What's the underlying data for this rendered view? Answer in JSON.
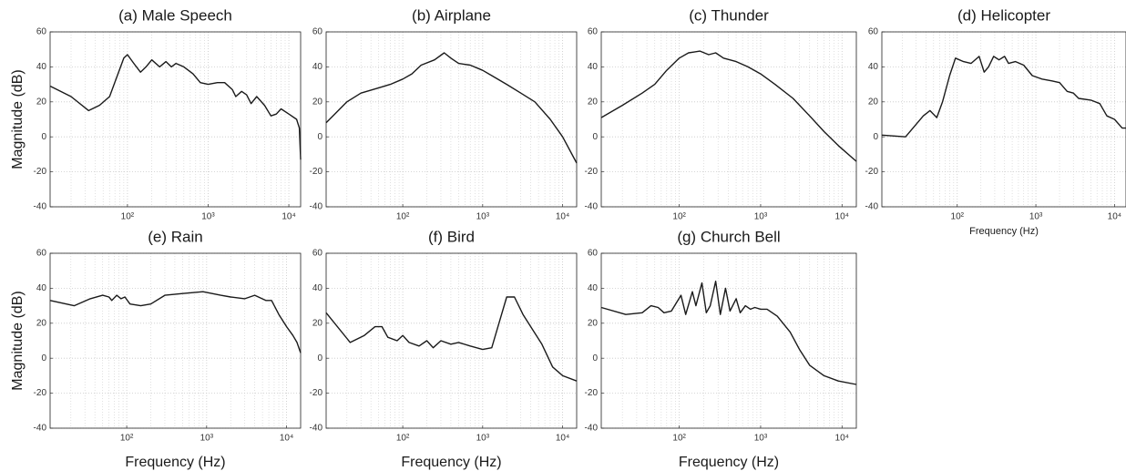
{
  "chart_data": [
    {
      "type": "line",
      "title": "(a) Male Speech",
      "ylabel": "Magnitude (dB)",
      "color": "#1a1a1a",
      "log_x": true,
      "grid": true,
      "xlim": [
        11,
        14000
      ],
      "ylim": [
        -40,
        60
      ],
      "xticks": [
        {
          "value": 100,
          "label": "10²"
        },
        {
          "value": 1000,
          "label": "10³"
        },
        {
          "value": 10000,
          "label": "10⁴"
        }
      ],
      "yticks": [
        -40,
        -20,
        0,
        20,
        40,
        60
      ],
      "x": [
        11,
        20,
        33,
        45,
        60,
        75,
        90,
        100,
        120,
        145,
        170,
        200,
        250,
        300,
        350,
        400,
        500,
        650,
        800,
        1000,
        1300,
        1600,
        2000,
        2200,
        2600,
        3000,
        3400,
        4000,
        5000,
        6000,
        7000,
        8000,
        10000,
        12500,
        13500,
        14000
      ],
      "values": [
        29,
        23,
        15,
        18,
        23,
        35,
        45,
        47,
        42,
        37,
        40,
        44,
        40,
        43,
        40,
        42,
        40,
        36,
        31,
        30,
        31,
        31,
        27,
        23,
        26,
        24,
        19,
        23,
        18,
        12,
        13,
        16,
        13,
        10,
        5,
        -13
      ]
    },
    {
      "type": "line",
      "title": "(b) Airplane",
      "color": "#1a1a1a",
      "log_x": true,
      "grid": true,
      "xlim": [
        11,
        15000
      ],
      "ylim": [
        -40,
        60
      ],
      "xticks": [
        {
          "value": 100,
          "label": "10²"
        },
        {
          "value": 1000,
          "label": "10³"
        },
        {
          "value": 10000,
          "label": "10⁴"
        }
      ],
      "yticks": [
        -40,
        -20,
        0,
        20,
        40,
        60
      ],
      "x": [
        11,
        20,
        30,
        50,
        70,
        100,
        130,
        170,
        250,
        330,
        400,
        500,
        700,
        1000,
        1300,
        2000,
        3000,
        4500,
        7000,
        10000,
        15000
      ],
      "values": [
        8,
        20,
        25,
        28,
        30,
        33,
        36,
        41,
        44,
        48,
        45,
        42,
        41,
        38,
        35,
        30,
        25,
        20,
        10,
        0,
        -15
      ]
    },
    {
      "type": "line",
      "title": "(c) Thunder",
      "color": "#1a1a1a",
      "log_x": true,
      "grid": true,
      "xlim": [
        11,
        15000
      ],
      "ylim": [
        -40,
        60
      ],
      "xticks": [
        {
          "value": 100,
          "label": "10²"
        },
        {
          "value": 1000,
          "label": "10³"
        },
        {
          "value": 10000,
          "label": "10⁴"
        }
      ],
      "yticks": [
        -40,
        -20,
        0,
        20,
        40,
        60
      ],
      "x": [
        11,
        20,
        35,
        50,
        70,
        100,
        130,
        180,
        230,
        280,
        350,
        500,
        700,
        1000,
        1500,
        2500,
        4000,
        6000,
        9000,
        15000
      ],
      "values": [
        11,
        18,
        25,
        30,
        38,
        45,
        48,
        49,
        47,
        48,
        45,
        43,
        40,
        36,
        30,
        22,
        12,
        3,
        -5,
        -14
      ]
    },
    {
      "type": "line",
      "title": "(d) Helicopter",
      "xlabel": "Frequency (Hz)",
      "color": "#1a1a1a",
      "log_x": true,
      "grid": true,
      "xlim": [
        11,
        14000
      ],
      "ylim": [
        -40,
        60
      ],
      "xticks": [
        {
          "value": 100,
          "label": "10²"
        },
        {
          "value": 1000,
          "label": "10³"
        },
        {
          "value": 10000,
          "label": "10⁴"
        }
      ],
      "yticks": [
        -40,
        -20,
        0,
        20,
        40,
        60
      ],
      "x": [
        11,
        22,
        37,
        45,
        55,
        65,
        80,
        95,
        120,
        150,
        190,
        220,
        250,
        290,
        340,
        400,
        450,
        550,
        700,
        900,
        1200,
        1600,
        2000,
        2500,
        3000,
        3500,
        5000,
        6500,
        8000,
        10000,
        12500,
        14000
      ],
      "values": [
        1,
        0,
        12,
        15,
        11,
        20,
        35,
        45,
        43,
        42,
        46,
        37,
        40,
        46,
        44,
        46,
        42,
        43,
        41,
        35,
        33,
        32,
        31,
        26,
        25,
        22,
        21,
        19,
        12,
        10,
        5,
        5
      ]
    },
    {
      "type": "line",
      "title": "(e) Rain",
      "xlabel": "Frequency (Hz)",
      "ylabel": "Magnitude (dB)",
      "color": "#1a1a1a",
      "log_x": true,
      "grid": true,
      "xlim": [
        11,
        15000
      ],
      "ylim": [
        -40,
        60
      ],
      "xticks": [
        {
          "value": 100,
          "label": "10²"
        },
        {
          "value": 1000,
          "label": "10³"
        },
        {
          "value": 10000,
          "label": "10⁴"
        }
      ],
      "yticks": [
        -40,
        -20,
        0,
        20,
        40,
        60
      ],
      "x": [
        11,
        22,
        35,
        50,
        60,
        65,
        75,
        85,
        95,
        110,
        150,
        200,
        300,
        500,
        900,
        1500,
        2000,
        3000,
        4000,
        5500,
        6500,
        8000,
        10000,
        12000,
        13500,
        15000
      ],
      "values": [
        33,
        30,
        34,
        36,
        35,
        33,
        36,
        34,
        35,
        31,
        30,
        31,
        36,
        37,
        38,
        36,
        35,
        34,
        36,
        33,
        33,
        25,
        18,
        13,
        9,
        3
      ]
    },
    {
      "type": "line",
      "title": "(f) Bird",
      "xlabel": "Frequency (Hz)",
      "color": "#1a1a1a",
      "log_x": true,
      "grid": true,
      "xlim": [
        11,
        15000
      ],
      "ylim": [
        -40,
        60
      ],
      "xticks": [
        {
          "value": 100,
          "label": "10²"
        },
        {
          "value": 1000,
          "label": "10³"
        },
        {
          "value": 10000,
          "label": "10⁴"
        }
      ],
      "yticks": [
        -40,
        -20,
        0,
        20,
        40,
        60
      ],
      "x": [
        11,
        22,
        33,
        45,
        55,
        65,
        85,
        100,
        120,
        160,
        200,
        240,
        300,
        400,
        500,
        700,
        1000,
        1300,
        1600,
        2000,
        2500,
        3200,
        4000,
        5500,
        7500,
        10000,
        15000
      ],
      "values": [
        26,
        9,
        13,
        18,
        18,
        12,
        10,
        13,
        9,
        7,
        10,
        6,
        10,
        8,
        9,
        7,
        5,
        6,
        20,
        35,
        35,
        25,
        18,
        8,
        -5,
        -10,
        -13
      ]
    },
    {
      "type": "line",
      "title": "(g) Church Bell",
      "xlabel": "Frequency (Hz)",
      "color": "#1a1a1a",
      "log_x": true,
      "grid": true,
      "xlim": [
        11,
        15000
      ],
      "ylim": [
        -40,
        60
      ],
      "xticks": [
        {
          "value": 100,
          "label": "10²"
        },
        {
          "value": 1000,
          "label": "10³"
        },
        {
          "value": 10000,
          "label": "10⁴"
        }
      ],
      "yticks": [
        -40,
        -20,
        0,
        20,
        40,
        60
      ],
      "x": [
        11,
        22,
        35,
        45,
        55,
        65,
        80,
        105,
        120,
        145,
        160,
        190,
        215,
        240,
        280,
        320,
        370,
        420,
        500,
        560,
        650,
        750,
        850,
        1000,
        1200,
        1600,
        2300,
        3000,
        4000,
        6000,
        9000,
        15000
      ],
      "values": [
        29,
        25,
        26,
        30,
        29,
        26,
        27,
        36,
        25,
        38,
        30,
        43,
        26,
        30,
        44,
        25,
        40,
        27,
        34,
        26,
        30,
        28,
        29,
        28,
        28,
        24,
        15,
        5,
        -4,
        -10,
        -13,
        -15
      ]
    }
  ]
}
